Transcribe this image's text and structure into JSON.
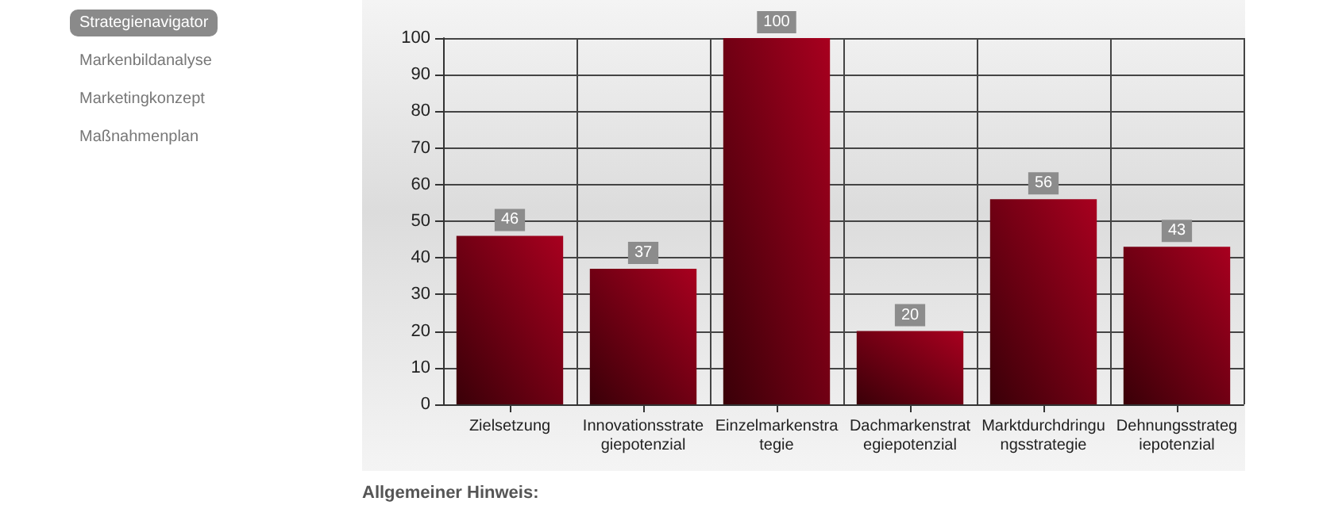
{
  "chart_data": {
    "type": "bar",
    "categories": [
      "Zielsetzung",
      "Innovationsstrategiepotenzial",
      "Einzelmarkenstrategie",
      "Dachmarkenstrategiepotenzial",
      "Marktdurchdringungsstrategie",
      "Dehnungsstrategiepotenzial"
    ],
    "values": [
      46,
      37,
      100,
      20,
      56,
      43
    ],
    "color": "#a8001f",
    "ylim": [
      0,
      100
    ],
    "yticks": [
      0,
      10,
      20,
      30,
      40,
      50,
      60,
      70,
      80,
      90,
      100
    ],
    "grid": true,
    "data_labels": true,
    "annotations": [
      "Strategienavigator",
      "Markenbildanalyse",
      "Marketingkonzept",
      "Maßnahmenplan",
      "Allgemeiner Hinweis:"
    ]
  }
}
